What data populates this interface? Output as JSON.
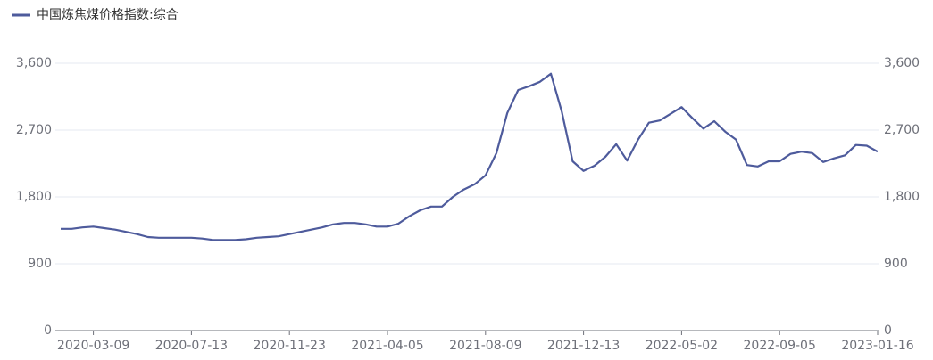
{
  "chart_data": {
    "type": "line",
    "categories": [
      null,
      null,
      null,
      "2020-03-09",
      null,
      null,
      null,
      null,
      null,
      null,
      null,
      null,
      "2020-07-13",
      null,
      null,
      null,
      null,
      null,
      null,
      null,
      null,
      "2020-11-23",
      null,
      null,
      null,
      null,
      null,
      null,
      null,
      null,
      "2021-04-05",
      null,
      null,
      null,
      null,
      null,
      null,
      null,
      null,
      "2021-08-09",
      null,
      null,
      null,
      null,
      null,
      null,
      null,
      null,
      "2021-12-13",
      null,
      null,
      null,
      null,
      null,
      null,
      null,
      null,
      "2022-05-02",
      null,
      null,
      null,
      null,
      null,
      null,
      null,
      null,
      "2022-09-05",
      null,
      null,
      null,
      null,
      null,
      null,
      null,
      null,
      "2023-01-16"
    ],
    "series": [
      {
        "name": "中国炼焦煤价格指数:综合",
        "color": "#4e5b9c",
        "axis": "y",
        "values": [
          1370,
          1370,
          1390,
          1400,
          1380,
          1360,
          1330,
          1300,
          1260,
          1250,
          1250,
          1250,
          1250,
          1240,
          1220,
          1220,
          1220,
          1230,
          1250,
          1260,
          1270,
          1300,
          1330,
          1360,
          1390,
          1430,
          1450,
          1450,
          1430,
          1400,
          1400,
          1440,
          1540,
          1620,
          1670,
          1670,
          1800,
          1900,
          1970,
          2090,
          2390,
          2930,
          3240,
          3290,
          3350,
          3460,
          2950,
          2280,
          2150,
          2220,
          2340,
          2510,
          2290,
          2570,
          2800,
          2830,
          2920,
          3010,
          2860,
          2720,
          2820,
          2680,
          2570,
          2230,
          2210,
          2280,
          2280,
          2380,
          2410,
          2390,
          2270,
          2320,
          2360,
          2500,
          2490,
          2410
        ]
      }
    ],
    "ylim": [
      0,
      3600
    ],
    "yticks": [
      0,
      900,
      {
        "value": 1800,
        "label": "1,800"
      },
      {
        "value": 2700,
        "label": "2,700"
      },
      {
        "value": 3600,
        "label": "3,600"
      }
    ],
    "y2lim": [
      0,
      3600
    ],
    "y2ticks": [
      0,
      900,
      {
        "value": 1800,
        "label": "1,800"
      },
      {
        "value": 2700,
        "label": "2,700"
      },
      {
        "value": 3600,
        "label": "3,600"
      }
    ],
    "grid": true,
    "legend": "top-left"
  }
}
